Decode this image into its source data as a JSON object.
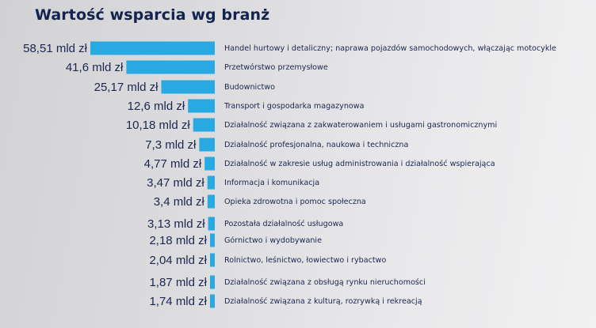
{
  "chart_data": {
    "type": "bar",
    "orientation": "horizontal",
    "title": "Wartość wsparcia wg branż",
    "unit": "mld zł",
    "bar_color": "#29a9e1",
    "text_color": "#1b2651",
    "categories": [
      "Handel hurtowy i detaliczny; naprawa pojazdów samochodowych, włączając motocykle",
      "Przetwórstwo przemysłowe",
      "Budownictwo",
      "Transport i gospodarka magazynowa",
      "Działalność związana z zakwaterowaniem i usługami gastronomicznymi",
      "Działalność profesjonalna, naukowa i techniczna",
      "Działalność w zakresie usług administrowania i działalność wspierająca",
      "Informacja i komunikacja",
      "Opieka zdrowotna i pomoc społeczna",
      "Pozostała działalność usługowa",
      "Górnictwo i wydobywanie",
      "Rolnictwo, leśnictwo, łowiectwo i rybactwo",
      "Działalność związana z obsługą rynku nieruchomości",
      "Działalność związana z kulturą, rozrywką i rekreacją"
    ],
    "values": [
      58.51,
      41.6,
      25.17,
      12.6,
      10.18,
      7.3,
      4.77,
      3.47,
      3.4,
      3.13,
      2.18,
      2.04,
      1.87,
      1.74
    ],
    "value_labels": [
      "58,51 mld zł",
      "41,6 mld zł",
      "25,17 mld zł",
      "12,6 mld zł",
      "10,18 mld zł",
      "7,3 mld zł",
      "4,77 mld zł",
      "3,47 mld zł",
      "3,4 mld zł",
      "3,13 mld zł",
      "2,18 mld zł",
      "2,04 mld zł",
      "1,87 mld zł",
      "1,74 mld zł"
    ],
    "xlabel": "",
    "ylabel": "",
    "grid": false,
    "legend": "none"
  }
}
